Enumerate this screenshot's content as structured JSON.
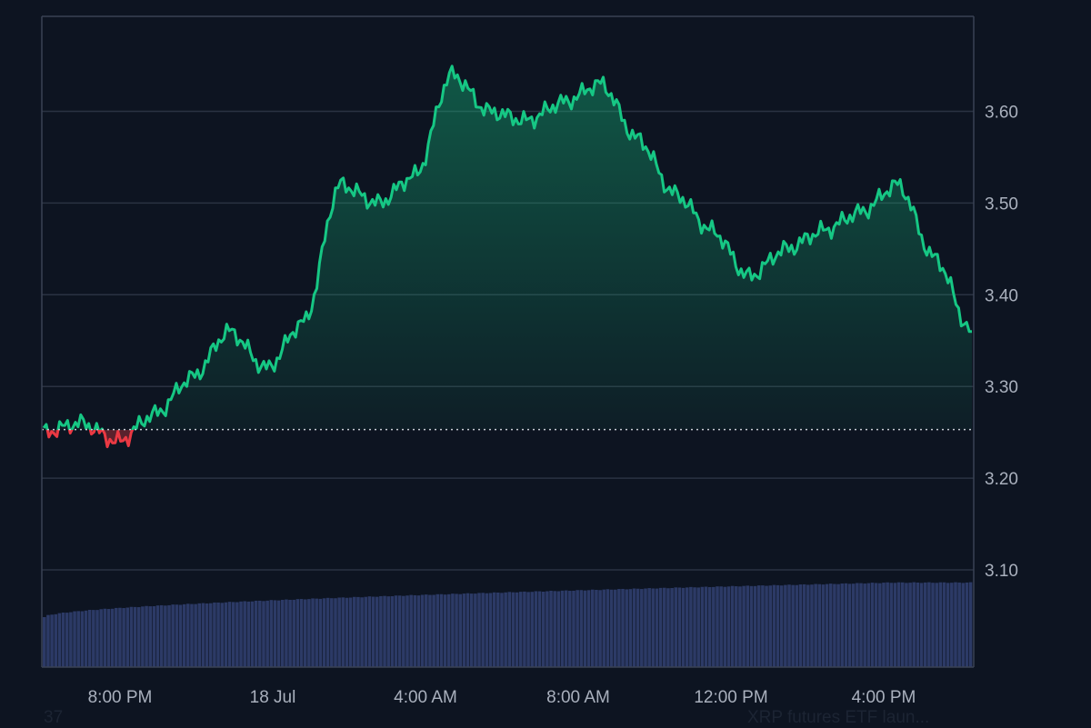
{
  "chart_data": {
    "type": "area",
    "series": [
      {
        "name": "",
        "x": [
          "17 Jul 17:00",
          "17 Jul 18:00",
          "17 Jul 19:00",
          "17 Jul 20:00",
          "17 Jul 21:00",
          "17 Jul 22:00",
          "17 Jul 23:00",
          "18 Jul 00:00",
          "18 Jul 01:00",
          "18 Jul 02:00",
          "18 Jul 03:00",
          "18 Jul 04:00",
          "18 Jul 05:00",
          "18 Jul 06:00",
          "18 Jul 07:00",
          "18 Jul 08:00",
          "18 Jul 09:00",
          "18 Jul 10:00",
          "18 Jul 11:00",
          "18 Jul 12:00",
          "18 Jul 13:00",
          "18 Jul 14:00",
          "18 Jul 15:00",
          "18 Jul 16:00",
          "18 Jul 17:00",
          "18 Jul 17:30"
        ],
        "values": [
          3.25,
          3.26,
          3.24,
          3.27,
          3.31,
          3.36,
          3.32,
          3.37,
          3.52,
          3.5,
          3.53,
          3.64,
          3.6,
          3.59,
          3.61,
          3.63,
          3.57,
          3.51,
          3.47,
          3.42,
          3.45,
          3.47,
          3.49,
          3.52,
          3.44,
          3.36
        ]
      }
    ],
    "reference_line": 3.253,
    "volume_bars": {
      "count": 246,
      "min_level": 0.55,
      "max_level": 0.93
    },
    "y_ticks": [
      "3.10",
      "3.20",
      "3.30",
      "3.40",
      "3.50",
      "3.60"
    ],
    "x_ticks": [
      "8:00 PM",
      "18 Jul",
      "4:00 AM",
      "8:00 AM",
      "12:00 PM",
      "4:00 PM"
    ],
    "ylim": [
      3.0,
      3.7
    ],
    "colors": {
      "up": "#16c784",
      "down": "#ea3943",
      "volume": "#2c3a66",
      "grid": "#2a3242",
      "background": "#0d1421"
    },
    "grid": true
  },
  "footer": {
    "left_text": "37",
    "right_text": "XRP futures ETF laun..."
  }
}
